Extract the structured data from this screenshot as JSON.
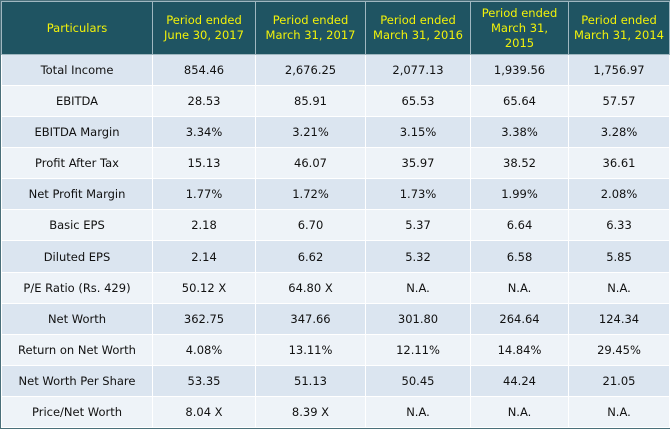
{
  "table": {
    "header": [
      "Particulars",
      "Period ended\nJune 30, 2017",
      "Period ended\nMarch 31, 2017",
      "Period ended\nMarch 31, 2016",
      "Period ended\nMarch 31, 2015",
      "Period ended\nMarch 31, 2014"
    ],
    "rows": [
      [
        "Total Income",
        "854.46",
        "2,676.25",
        "2,077.13",
        "1,939.56",
        "1,756.97"
      ],
      [
        "EBITDA",
        "28.53",
        "85.91",
        "65.53",
        "65.64",
        "57.57"
      ],
      [
        "EBITDA Margin",
        "3.34%",
        "3.21%",
        "3.15%",
        "3.38%",
        "3.28%"
      ],
      [
        "Profit After Tax",
        "15.13",
        "46.07",
        "35.97",
        "38.52",
        "36.61"
      ],
      [
        "Net Profit Margin",
        "1.77%",
        "1.72%",
        "1.73%",
        "1.99%",
        "2.08%"
      ],
      [
        "Basic EPS",
        "2.18",
        "6.70",
        "5.37",
        "6.64",
        "6.33"
      ],
      [
        "Diluted EPS",
        "2.14",
        "6.62",
        "5.32",
        "6.58",
        "5.85"
      ],
      [
        "P/E Ratio (Rs. 429)",
        "50.12 X",
        "64.80 X",
        "N.A.",
        "N.A.",
        "N.A."
      ],
      [
        "Net Worth",
        "362.75",
        "347.66",
        "301.80",
        "264.64",
        "124.34"
      ],
      [
        "Return on Net Worth",
        "4.08%",
        "13.11%",
        "12.11%",
        "14.84%",
        "29.45%"
      ],
      [
        "Net Worth Per Share",
        "53.35",
        "51.13",
        "50.45",
        "44.24",
        "21.05"
      ],
      [
        "Price/Net Worth",
        "8.04 X",
        "8.39 X",
        "N.A.",
        "N.A.",
        "N.A."
      ]
    ]
  }
}
